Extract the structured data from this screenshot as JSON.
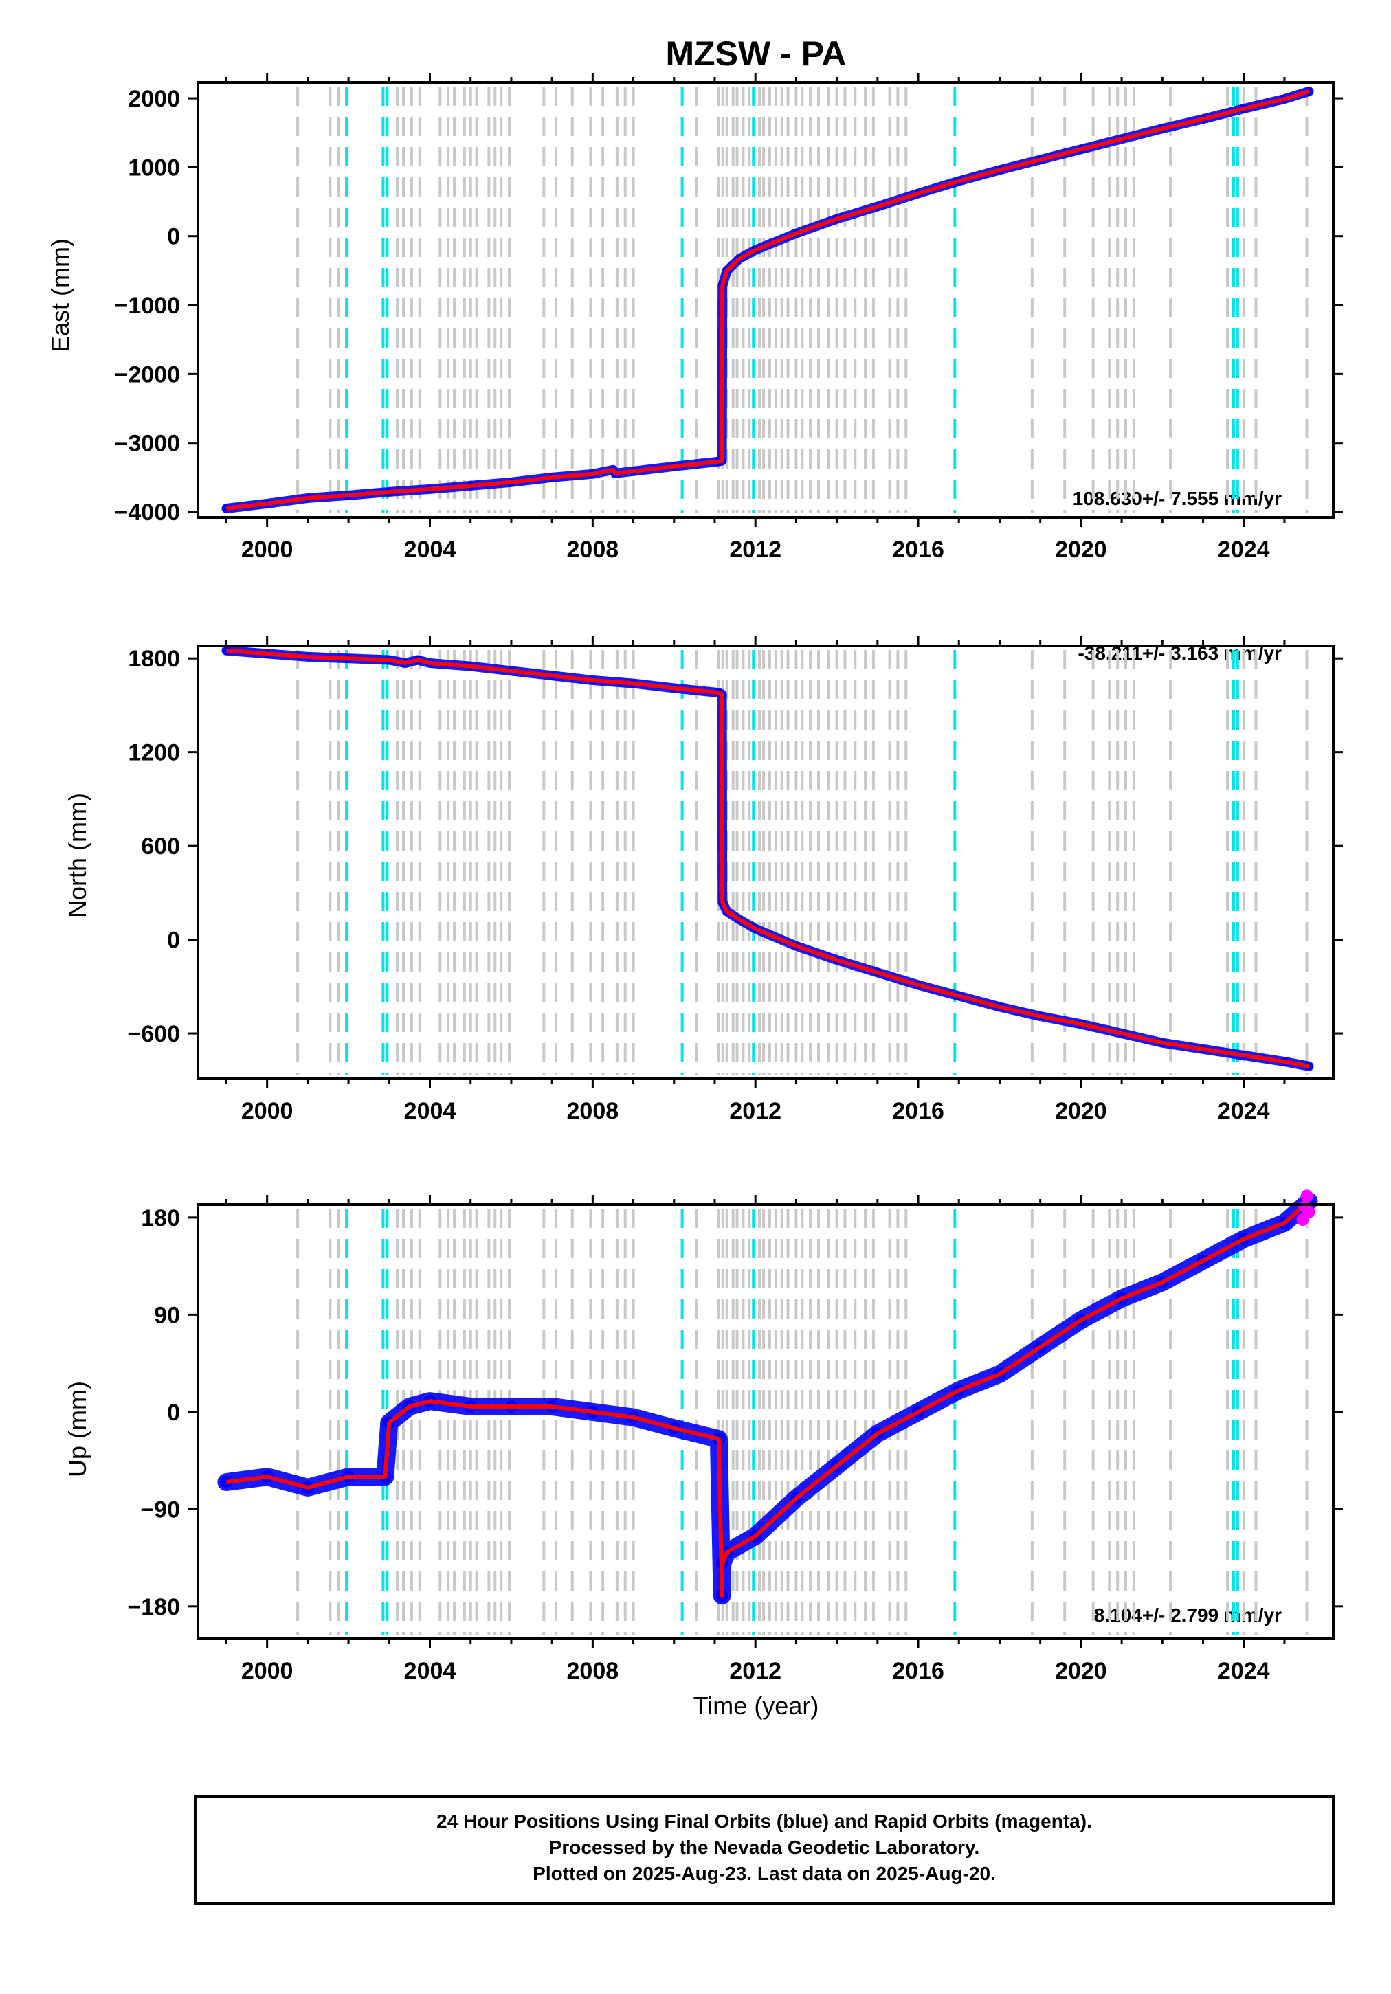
{
  "title": "MZSW - PA",
  "xlabel": "Time (year)",
  "footer": {
    "line1": "24 Hour Positions Using Final Orbits (blue) and Rapid Orbits (magenta).",
    "line2": "Processed by the Nevada Geodetic Laboratory.",
    "line3": "Plotted on 2025-Aug-23. Last data on 2025-Aug-20."
  },
  "colors": {
    "final_orbits": "#0000ff",
    "rapid_orbits": "#ff00ff",
    "model": "#ff0000",
    "equipment_change": "#c8c8c8",
    "earthquake": "#00e5e5"
  },
  "chart_data": [
    {
      "type": "scatter",
      "id": "east",
      "ylabel": "East (mm)",
      "rate": "108.630+/- 7.555 mm/yr",
      "xlim": [
        1998.3,
        2026.2
      ],
      "ylim": [
        -4080,
        2230
      ],
      "x_ticks": [
        2000,
        2004,
        2008,
        2012,
        2016,
        2020,
        2024
      ],
      "y_ticks": [
        -4000,
        -3000,
        -2000,
        -1000,
        0,
        1000,
        2000
      ],
      "series": [
        {
          "name": "Final Orbits",
          "x": [
            1999.0,
            2000.0,
            2001.0,
            2002.0,
            2003.0,
            2004.0,
            2005.0,
            2006.0,
            2007.0,
            2008.0,
            2008.5,
            2008.55,
            2009.0,
            2010.0,
            2011.1,
            2011.18,
            2011.19,
            2011.3,
            2011.6,
            2012.0,
            2013.0,
            2014.0,
            2015.0,
            2016.0,
            2017.0,
            2018.0,
            2019.0,
            2020.0,
            2021.0,
            2022.0,
            2023.0,
            2024.0,
            2025.0,
            2025.6
          ],
          "y": [
            -3950,
            -3880,
            -3800,
            -3760,
            -3710,
            -3670,
            -3620,
            -3570,
            -3500,
            -3450,
            -3390,
            -3440,
            -3410,
            -3340,
            -3270,
            -3260,
            -720,
            -500,
            -330,
            -200,
            40,
            250,
            430,
            620,
            800,
            960,
            1110,
            1260,
            1410,
            1560,
            1700,
            1850,
            1990,
            2100
          ]
        }
      ]
    },
    {
      "type": "scatter",
      "id": "north",
      "ylabel": "North (mm)",
      "rate": "-38.211+/- 3.163 mm/yr",
      "xlim": [
        1998.3,
        2026.2
      ],
      "ylim": [
        -890,
        1880
      ],
      "x_ticks": [
        2000,
        2004,
        2008,
        2012,
        2016,
        2020,
        2024
      ],
      "y_ticks": [
        -600,
        0,
        600,
        1200,
        1800
      ],
      "series": [
        {
          "name": "Final Orbits",
          "x": [
            1999.0,
            2000.0,
            2001.0,
            2002.0,
            2003.0,
            2003.4,
            2003.7,
            2004.0,
            2005.0,
            2006.0,
            2007.0,
            2008.0,
            2009.0,
            2010.0,
            2011.1,
            2011.18,
            2011.19,
            2011.3,
            2011.6,
            2012.0,
            2013.0,
            2014.0,
            2015.0,
            2016.0,
            2017.0,
            2018.0,
            2019.0,
            2020.0,
            2021.0,
            2022.0,
            2023.0,
            2024.0,
            2025.0,
            2025.6
          ],
          "y": [
            1850,
            1830,
            1810,
            1800,
            1790,
            1770,
            1790,
            1770,
            1750,
            1720,
            1690,
            1660,
            1640,
            1610,
            1580,
            1570,
            240,
            180,
            130,
            70,
            -40,
            -130,
            -210,
            -290,
            -360,
            -430,
            -490,
            -540,
            -600,
            -660,
            -700,
            -740,
            -780,
            -810
          ]
        }
      ]
    },
    {
      "type": "scatter",
      "id": "up",
      "ylabel": "Up (mm)",
      "rate": "8.104+/- 2.799 mm/yr",
      "xlim": [
        1998.3,
        2026.2
      ],
      "ylim": [
        -210,
        192
      ],
      "x_ticks": [
        2000,
        2004,
        2008,
        2012,
        2016,
        2020,
        2024
      ],
      "y_ticks": [
        -180,
        -90,
        0,
        90,
        180
      ],
      "series": [
        {
          "name": "Final Orbits",
          "x": [
            1999.0,
            2000.0,
            2001.0,
            2002.0,
            2002.9,
            2003.0,
            2003.5,
            2004.0,
            2005.0,
            2006.0,
            2007.0,
            2008.0,
            2009.0,
            2010.0,
            2011.1,
            2011.18,
            2011.19,
            2011.3,
            2012.0,
            2013.0,
            2014.0,
            2015.0,
            2016.0,
            2017.0,
            2018.0,
            2019.0,
            2020.0,
            2021.0,
            2022.0,
            2023.0,
            2024.0,
            2025.0,
            2025.6
          ],
          "y": [
            -65,
            -60,
            -70,
            -60,
            -60,
            -10,
            5,
            10,
            5,
            5,
            5,
            0,
            -5,
            -15,
            -25,
            -170,
            -140,
            -130,
            -115,
            -80,
            -50,
            -20,
            0,
            20,
            35,
            60,
            85,
            105,
            120,
            140,
            160,
            175,
            195
          ]
        },
        {
          "name": "Rapid Orbits",
          "x": [
            2025.45,
            2025.5,
            2025.55,
            2025.6
          ],
          "y": [
            178,
            190,
            200,
            185
          ]
        }
      ]
    }
  ]
}
